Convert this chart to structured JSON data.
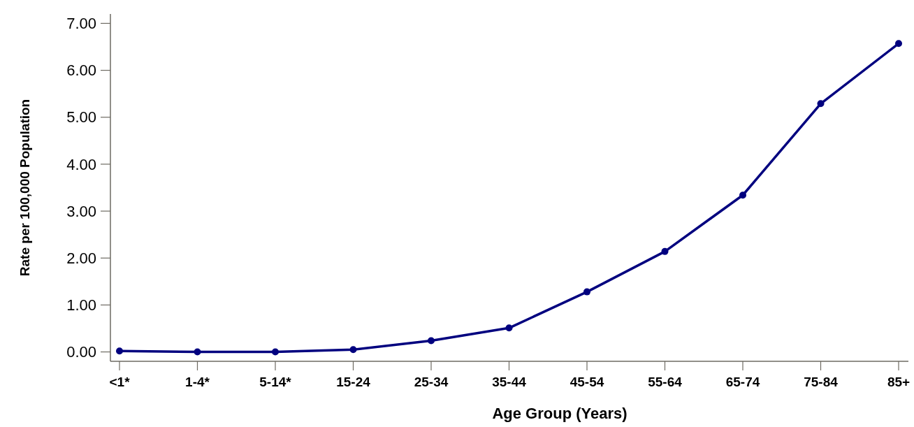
{
  "chart_data": {
    "type": "line",
    "xlabel": "Age Group (Years)",
    "ylabel": "Rate per 100,000 Population",
    "categories": [
      "<1*",
      "1-4*",
      "5-14*",
      "15-24",
      "25-34",
      "35-44",
      "45-54",
      "55-64",
      "65-74",
      "75-84",
      "85+"
    ],
    "series": [
      {
        "color": "#00007f",
        "values": [
          0.02,
          0.0,
          0.0,
          0.05,
          0.24,
          0.51,
          1.28,
          2.14,
          3.34,
          5.29,
          6.57
        ]
      }
    ],
    "ylim": [
      -0.2,
      7.2
    ],
    "yticks": [
      {
        "value": 0,
        "label": "0.00"
      },
      {
        "value": 1,
        "label": "1.00"
      },
      {
        "value": 2,
        "label": "2.00"
      },
      {
        "value": 3,
        "label": "3.00"
      },
      {
        "value": 4,
        "label": "4.00"
      },
      {
        "value": 5,
        "label": "5.00"
      },
      {
        "value": 6,
        "label": "6.00"
      },
      {
        "value": 7,
        "label": "7.00"
      }
    ],
    "marker": "circle",
    "line_style": "solid"
  }
}
